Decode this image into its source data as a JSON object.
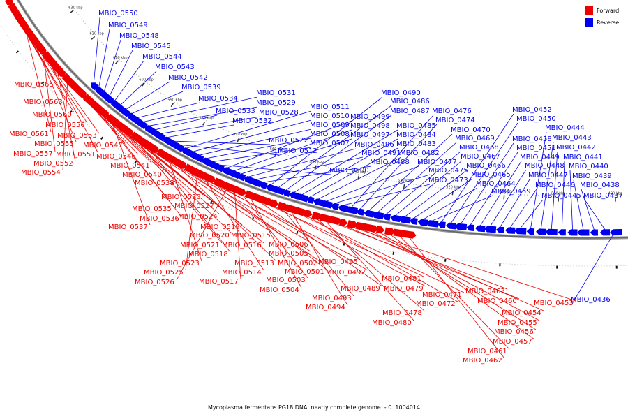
{
  "colors": {
    "forward": "#ee0000",
    "reverse": "#0000ee",
    "backbone": "#666666"
  },
  "legend": {
    "forward": "Forward",
    "reverse": "Reverse"
  },
  "caption": "Mycoplasma fermentans PG18 DNA, nearly complete genome. - 0..1004014",
  "ticks": [
    "640 kbp",
    "630 kbp",
    "620 kbp",
    "610 kbp",
    "600 kbp",
    "590 kbp",
    "580 kbp",
    "570 kbp",
    "560 kbp",
    "550 kbp",
    "540 kbp",
    "530 kbp",
    "520 kbp",
    "510 kbp",
    "500 kbp",
    "490 kbp"
  ],
  "reverse_genes": [
    "MBIO_0550",
    "MBIO_0549",
    "MBIO_0548",
    "MBIO_0545",
    "MBIO_0544",
    "MBIO_0543",
    "MBIO_0542",
    "MBIO_0539",
    "MBIO_0534",
    "MBIO_0531",
    "MBIO_0529",
    "MBIO_0533",
    "MBIO_0528",
    "MBIO_0532",
    "MBIO_0522",
    "MBIO_0512",
    "MBIO_0511",
    "MBIO_0510",
    "MBIO_0509",
    "MBIO_0508",
    "MBIO_0507",
    "MBIO_0500",
    "MBIO_0499",
    "MBIO_0498",
    "MBIO_0497",
    "MBIO_0496",
    "MBIO_0491",
    "MBIO_0488",
    "MBIO_0490",
    "MBIO_0486",
    "MBIO_0487",
    "MBIO_0485",
    "MBIO_0484",
    "MBIO_0483",
    "MBIO_0482",
    "MBIO_0477",
    "MBIO_0475",
    "MBIO_0473",
    "MBIO_0476",
    "MBIO_0474",
    "MBIO_0470",
    "MBIO_0469",
    "MBIO_0468",
    "MBIO_0467",
    "MBIO_0466",
    "MBIO_0465",
    "MBIO_0464",
    "MBIO_0459",
    "MBIO_0452",
    "MBIO_0450",
    "MBIO_0458",
    "MBIO_0451",
    "MBIO_0449",
    "MBIO_0448",
    "MBIO_0447",
    "MBIO_0446",
    "MBIO_0445",
    "MBIO_0444",
    "MBIO_0443",
    "MBIO_0442",
    "MBIO_0441",
    "MBIO_0440",
    "MBIO_0439",
    "MBIO_0438",
    "MBIO_0437",
    "MBIO_0436"
  ],
  "forward_genes": [
    "MBIO_0565",
    "MBIO_0563",
    "MBIO_0560",
    "MBIO_0556",
    "MBIO_0561",
    "MBIO_0553",
    "MBIO_0555",
    "MBIO_0547",
    "MBIO_0557",
    "MBIO_0551",
    "MBIO_0546",
    "MBIO_0552",
    "MBIO_0541",
    "MBIO_0554",
    "MBIO_0540",
    "MBIO_0538",
    "MBIO_0530",
    "MBIO_0527",
    "MBIO_0535",
    "MBIO_0536",
    "MBIO_0524",
    "MBIO_0537",
    "MBIO_0519",
    "MBIO_0520",
    "MBIO_0515",
    "MBIO_0521",
    "MBIO_0516",
    "MBIO_0518",
    "MBIO_0506",
    "MBIO_0505",
    "MBIO_0523",
    "MBIO_0513",
    "MBIO_0502",
    "MBIO_0495",
    "MBIO_0525",
    "MBIO_0514",
    "MBIO_0501",
    "MBIO_0492",
    "MBIO_0526",
    "MBIO_0517",
    "MBIO_0503",
    "MBIO_0504",
    "MBIO_0489",
    "MBIO_0481",
    "MBIO_0479",
    "MBIO_0493",
    "MBIO_0494",
    "MBIO_0471",
    "MBIO_0472",
    "MBIO_0478",
    "MBIO_0480",
    "MBIO_0463",
    "MBIO_0460",
    "MBIO_0453",
    "MBIO_0454",
    "MBIO_0455",
    "MBIO_0456",
    "MBIO_0457",
    "MBIO_0461",
    "MBIO_0462"
  ]
}
